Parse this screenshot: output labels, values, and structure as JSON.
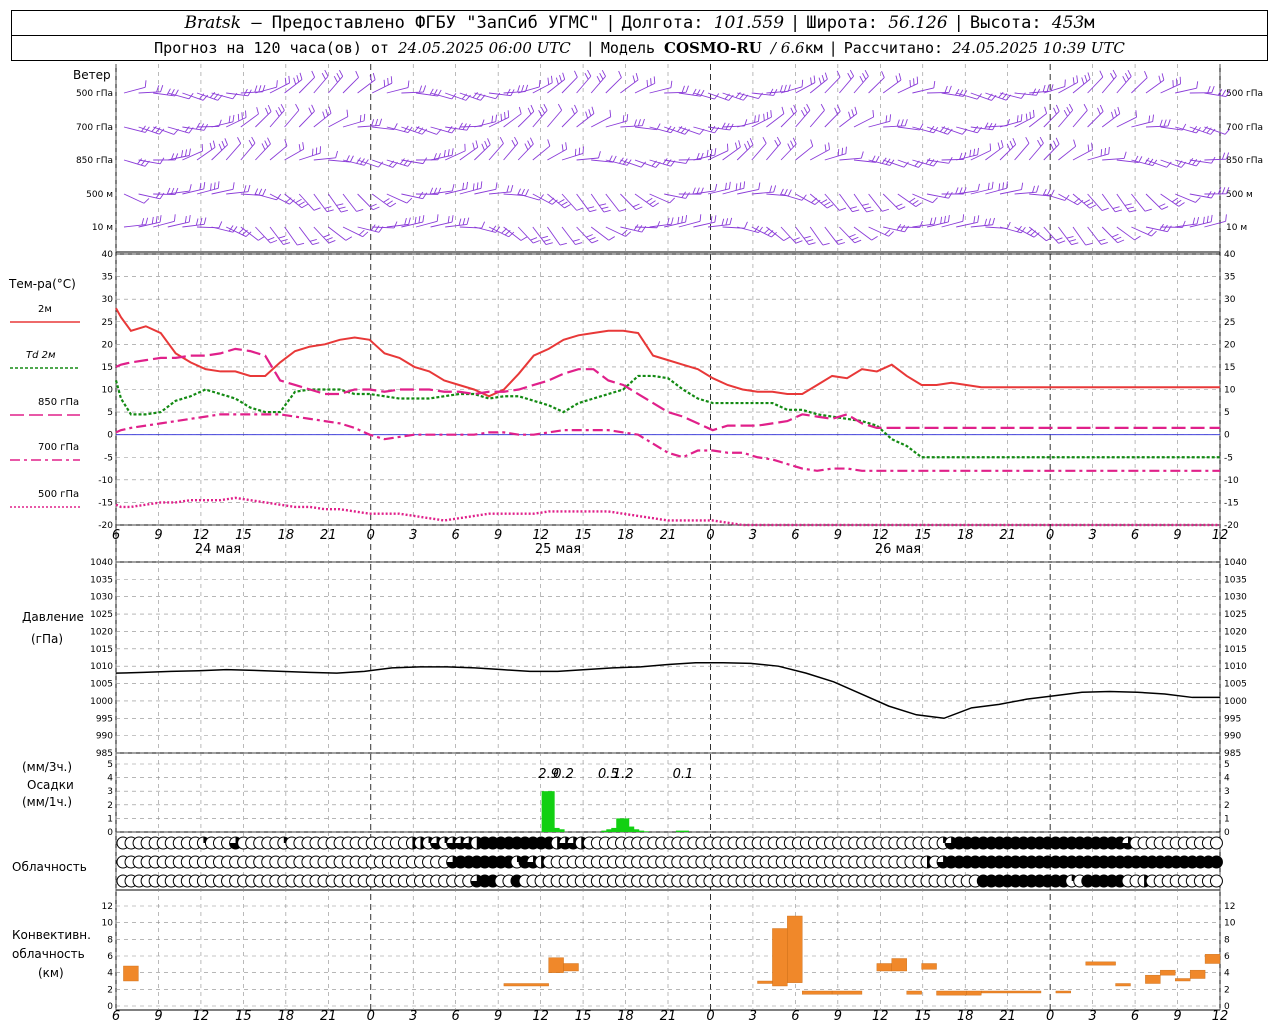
{
  "header": {
    "station": "Bratsk",
    "provider": "— Предоставлено ФГБУ \"ЗапСиб УГМС\"",
    "lon_label": "Долгота:",
    "lon": "101.559",
    "lat_label": "Широта:",
    "lat": "56.126",
    "alt_label": "Высота:",
    "alt": "453",
    "alt_unit": "м",
    "forecast_label": "Прогноз на 120 часа(ов) от",
    "forecast_start": "24.05.2025 06:00 UTC",
    "model_label": "Модель",
    "model_name": "COSMO-RU",
    "model_res": "/ 6.6",
    "model_res_unit": "км",
    "calc_label": "Рассчитано:",
    "calc_time": "24.05.2025 10:39 UTC"
  },
  "colors": {
    "t2m": "#e83838",
    "td2m": "#138a13",
    "t850": "#e0208a",
    "t700": "#e0208a",
    "t500": "#e0208a",
    "wind": "#8a3bd8",
    "precip": "#12d012",
    "convective": "#f0882a",
    "grid": "#8c8c8c"
  },
  "labels": {
    "wind_title": "Ветер",
    "wind_levels": [
      "500 гПа",
      "700 гПа",
      "850 гПа",
      "500 м",
      "10 м"
    ],
    "temp_title": "Тем-ра(°C)",
    "temp_legend": [
      "2м",
      "Td 2м",
      "850 гПа",
      "700 гПа",
      "500 гПа"
    ],
    "pressure_title": "Давление",
    "pressure_unit": "(гПа)",
    "precip_unit3": "(мм/3ч.)",
    "precip_title": "Осадки",
    "precip_unit1": "(мм/1ч.)",
    "cloud_title": "Облачность",
    "conv_title": [
      "Конвективн.",
      "облачность",
      "(км)"
    ]
  },
  "x_axis": {
    "hour_ticks": [
      "6",
      "9",
      "12",
      "15",
      "18",
      "21",
      "0",
      "3",
      "6",
      "9",
      "12",
      "15",
      "18",
      "21",
      "0",
      "3",
      "6",
      "9",
      "12",
      "15",
      "18",
      "21",
      "0",
      "3",
      "6",
      "9",
      "12"
    ],
    "day_labels": [
      "24 мая",
      "25 мая",
      "26 мая"
    ]
  },
  "chart_data": [
    {
      "type": "line",
      "panel": "temperature",
      "ylim": [
        -20,
        40
      ],
      "yticks": [
        "40",
        "35",
        "30",
        "25",
        "20",
        "15",
        "10",
        "5",
        "0",
        "-5",
        "-10",
        "-15",
        "-20"
      ],
      "x_hours": [
        0,
        1,
        3,
        6,
        9,
        12,
        15,
        18,
        21,
        24,
        27,
        30,
        33,
        36,
        39,
        42,
        45,
        48,
        51,
        54,
        57,
        60,
        63,
        66,
        69,
        72,
        75,
        78,
        81,
        84,
        87,
        90,
        93,
        96,
        99,
        102,
        105,
        108,
        111,
        114,
        117,
        120,
        123,
        126,
        129,
        132,
        135,
        138,
        141,
        144,
        147,
        150,
        153,
        156,
        159,
        162,
        165,
        168,
        171,
        174,
        177,
        180,
        183,
        186,
        189,
        192,
        195,
        198,
        201,
        204,
        207,
        210,
        213,
        216,
        219,
        222
      ],
      "series": [
        {
          "name": "2м",
          "values": [
            28,
            26,
            23,
            24,
            22.5,
            18,
            16,
            14.5,
            14,
            14,
            13,
            13,
            16,
            18.5,
            19.5,
            20,
            21,
            21.5,
            21,
            18,
            17,
            15,
            14,
            12,
            11,
            10,
            8.5,
            10,
            13.5,
            17.5,
            19,
            21,
            22,
            22.5,
            23,
            23,
            22.5,
            17.5,
            16.5,
            15.5,
            14.5,
            12.5,
            11,
            10,
            9.5,
            9.5,
            9,
            9,
            11,
            13,
            12.5,
            14.5,
            14,
            15.5,
            13,
            11,
            11,
            11.5,
            11,
            10.5,
            10.5,
            10.5,
            10.5,
            10.5,
            10.5,
            10.5,
            10.5,
            10.5,
            10.5,
            10.5,
            10.5,
            10.5,
            10.5,
            10.5,
            10.5,
            10.5
          ]
        },
        {
          "name": "Td 2м",
          "values": [
            12,
            8,
            4.5,
            4.5,
            5,
            7.5,
            8.5,
            10,
            9,
            8,
            6,
            5,
            5,
            9.5,
            10,
            10,
            10,
            9,
            9,
            8.5,
            8,
            8,
            8,
            8.5,
            9,
            9,
            8,
            8.5,
            8.5,
            7.5,
            6.5,
            5,
            7,
            8,
            9,
            10,
            13,
            13,
            12.5,
            10,
            8,
            7,
            7,
            7,
            7,
            7,
            5.5,
            5.5,
            4.5,
            4,
            3.5,
            3,
            2,
            -1,
            -2.5,
            -5,
            -5,
            -5,
            -5,
            -5,
            -5,
            -5,
            -5,
            -5,
            -5,
            -5,
            -5,
            -5,
            -5,
            -5,
            -5,
            -5,
            -5,
            -5,
            -5,
            -5
          ]
        },
        {
          "name": "850 гПа",
          "values": [
            15,
            15.5,
            16,
            16.5,
            17,
            17,
            17.5,
            17.5,
            18,
            19,
            18.5,
            17.5,
            12,
            11,
            10,
            9,
            9,
            10,
            10,
            9.5,
            10,
            10,
            10,
            9.5,
            9.5,
            9,
            9.5,
            9.5,
            10,
            11,
            12,
            13.5,
            14.5,
            14.5,
            12,
            11,
            9,
            7,
            5,
            4,
            2.5,
            1,
            2,
            2,
            2,
            2.5,
            3,
            4.5,
            4,
            3.5,
            4.5,
            2.5,
            1.5,
            1.5,
            1.5,
            1.5,
            1.5,
            1.5,
            1.5,
            1.5,
            1.5,
            1.5,
            1.5,
            1.5,
            1.5,
            1.5,
            1.5,
            1.5,
            1.5,
            1.5,
            1.5,
            1.5,
            1.5,
            1.5,
            1.5,
            1.5
          ]
        },
        {
          "name": "700 гПа",
          "values": [
            0.5,
            1,
            1.5,
            2,
            2.5,
            3,
            3.5,
            4,
            4.5,
            4.5,
            4.5,
            4.5,
            4.5,
            4,
            3.5,
            3,
            2.5,
            1.5,
            0,
            -1,
            -0.5,
            0,
            0,
            0,
            0,
            0,
            0.5,
            0.5,
            0,
            0,
            0.5,
            1,
            1,
            1,
            1,
            0.5,
            0,
            -2,
            -4,
            -5,
            -3.5,
            -3.5,
            -4,
            -4,
            -5,
            -5.5,
            -6.5,
            -7.5,
            -8,
            -7.5,
            -7.5,
            -8,
            -8,
            -8,
            -8,
            -8,
            -8,
            -8,
            -8,
            -8,
            -8,
            -8,
            -8,
            -8,
            -8,
            -8,
            -8,
            -8,
            -8,
            -8,
            -8,
            -8,
            -8,
            -8,
            -8,
            -8
          ]
        },
        {
          "name": "500 гПа",
          "values": [
            -15.5,
            -16,
            -16,
            -15.5,
            -15,
            -15,
            -14.5,
            -14.5,
            -14.5,
            -14,
            -14.5,
            -15,
            -15.5,
            -16,
            -16,
            -16.5,
            -16.5,
            -17,
            -17.5,
            -17.5,
            -17.5,
            -18,
            -18.5,
            -19,
            -18.5,
            -18,
            -17.5,
            -17.5,
            -17.5,
            -17.5,
            -17,
            -17,
            -17,
            -17,
            -17,
            -17.5,
            -18,
            -18.5,
            -19,
            -19,
            -19,
            -19,
            -19.5,
            -20,
            -20,
            -20,
            -20,
            -20,
            -20,
            -20,
            -20,
            -20,
            -20,
            -20,
            -20,
            -20,
            -20,
            -20,
            -20,
            -20,
            -20,
            -20,
            -20,
            -20,
            -20,
            -20,
            -20,
            -20,
            -20,
            -20,
            -20,
            -20,
            -20,
            -20,
            -20,
            -20
          ]
        }
      ]
    },
    {
      "type": "line",
      "panel": "pressure",
      "ylim": [
        985,
        1040
      ],
      "yticks": [
        "1040",
        "1035",
        "1030",
        "1025",
        "1020",
        "1015",
        "1010",
        "1005",
        "1000",
        "995",
        "990",
        "985"
      ],
      "x_hours": [
        0,
        3,
        6,
        9,
        12,
        15,
        18,
        21,
        24,
        27,
        30,
        33,
        36,
        39,
        42,
        45,
        48,
        51,
        54,
        57,
        60,
        63,
        66,
        69,
        72,
        75,
        78,
        81,
        84,
        87,
        90,
        93,
        96,
        99,
        102,
        105,
        108,
        111,
        114,
        117,
        120
      ],
      "series": [
        {
          "name": "Давление",
          "values": [
            1008,
            1008.2,
            1008.5,
            1008.7,
            1009,
            1008.8,
            1008.5,
            1008.2,
            1008,
            1008.5,
            1009.5,
            1009.8,
            1009.8,
            1009.5,
            1009,
            1008.5,
            1008.5,
            1009,
            1009.5,
            1009.8,
            1010.5,
            1011,
            1011,
            1010.8,
            1010,
            1008,
            1005.5,
            1002,
            998.5,
            996,
            995,
            998,
            999,
            1000.5,
            1001.5,
            1002.5,
            1002.7,
            1002.5,
            1002,
            1001,
            1001
          ]
        }
      ]
    },
    {
      "type": "bar",
      "panel": "precipitation",
      "ylim": [
        0,
        5
      ],
      "yticks": [
        "5",
        "4",
        "3",
        "2",
        "1",
        "0"
      ],
      "bars_x_hours": [
        87,
        88,
        89,
        99,
        100,
        101,
        102,
        103,
        104,
        105,
        106,
        114
      ],
      "values": [
        3,
        0.3,
        0.2,
        0.1,
        0.2,
        0.3,
        1,
        0.4,
        0.2,
        0.1,
        0.05,
        0.1
      ],
      "totals_3h": [
        {
          "x_hour": 87,
          "label": "2.9"
        },
        {
          "x_hour": 90,
          "label": "0.2"
        },
        {
          "x_hour": 99,
          "label": "0.5"
        },
        {
          "x_hour": 102,
          "label": "1.2"
        },
        {
          "x_hour": 114,
          "label": "0.1"
        }
      ]
    },
    {
      "type": "bar",
      "panel": "convective_cloud",
      "ylim": [
        0,
        13
      ],
      "yticks": [
        "12",
        "10",
        "8",
        "6",
        "4",
        "2",
        "0"
      ],
      "ranges_x_hours": [
        [
          0.5,
          1.5
        ],
        [
          26,
          29
        ],
        [
          29,
          30
        ],
        [
          30,
          31
        ],
        [
          43,
          44
        ],
        [
          44,
          45
        ],
        [
          45,
          46
        ],
        [
          46,
          48
        ],
        [
          48,
          50
        ],
        [
          51,
          52
        ],
        [
          52,
          53
        ],
        [
          53,
          54
        ],
        [
          54,
          55
        ],
        [
          55,
          57
        ],
        [
          57,
          58
        ],
        [
          58,
          62
        ],
        [
          63,
          64
        ],
        [
          65,
          67
        ],
        [
          67,
          68
        ],
        [
          69,
          70
        ],
        [
          70,
          71
        ],
        [
          71,
          72
        ],
        [
          72,
          73
        ],
        [
          73,
          74
        ]
      ],
      "ranges_km": [
        [
          3,
          4.8
        ],
        [
          2.4,
          2.7
        ],
        [
          4,
          5.8
        ],
        [
          4.2,
          5.1
        ],
        [
          2.7,
          3
        ],
        [
          2.4,
          9.3
        ],
        [
          2.8,
          10.8
        ],
        [
          1.4,
          1.8
        ],
        [
          1.4,
          1.8
        ],
        [
          4.2,
          5.1
        ],
        [
          4.2,
          5.7
        ],
        [
          1.4,
          1.8
        ],
        [
          4.4,
          5.1
        ],
        [
          1.3,
          1.8
        ],
        [
          1.3,
          1.8
        ],
        [
          1.7,
          1.8
        ],
        [
          1.7,
          1.8
        ],
        [
          4.9,
          5.3
        ],
        [
          2.4,
          2.7
        ],
        [
          2.7,
          3.7
        ],
        [
          3.7,
          4.3
        ],
        [
          3,
          3.3
        ],
        [
          3.3,
          4.3
        ],
        [
          5.1,
          6.2
        ]
      ]
    }
  ],
  "cloud_cover": {
    "levels": [
      "upper",
      "middle",
      "lower"
    ],
    "rows": [
      "00000000001000300000100000000000000022131333244444444423320000000000000000000000000000000000000000000013444444444444444444444300000000000",
      "00000000000000000000000000000000000000000344444441432000000000000000000000000000000000000000000000002034444444444444444444444444444444444",
      "00000000000000000000000000000000000000000000344004000000000000000000000000000000000000000000000000000000000444444444441044444002000000000"
    ]
  }
}
